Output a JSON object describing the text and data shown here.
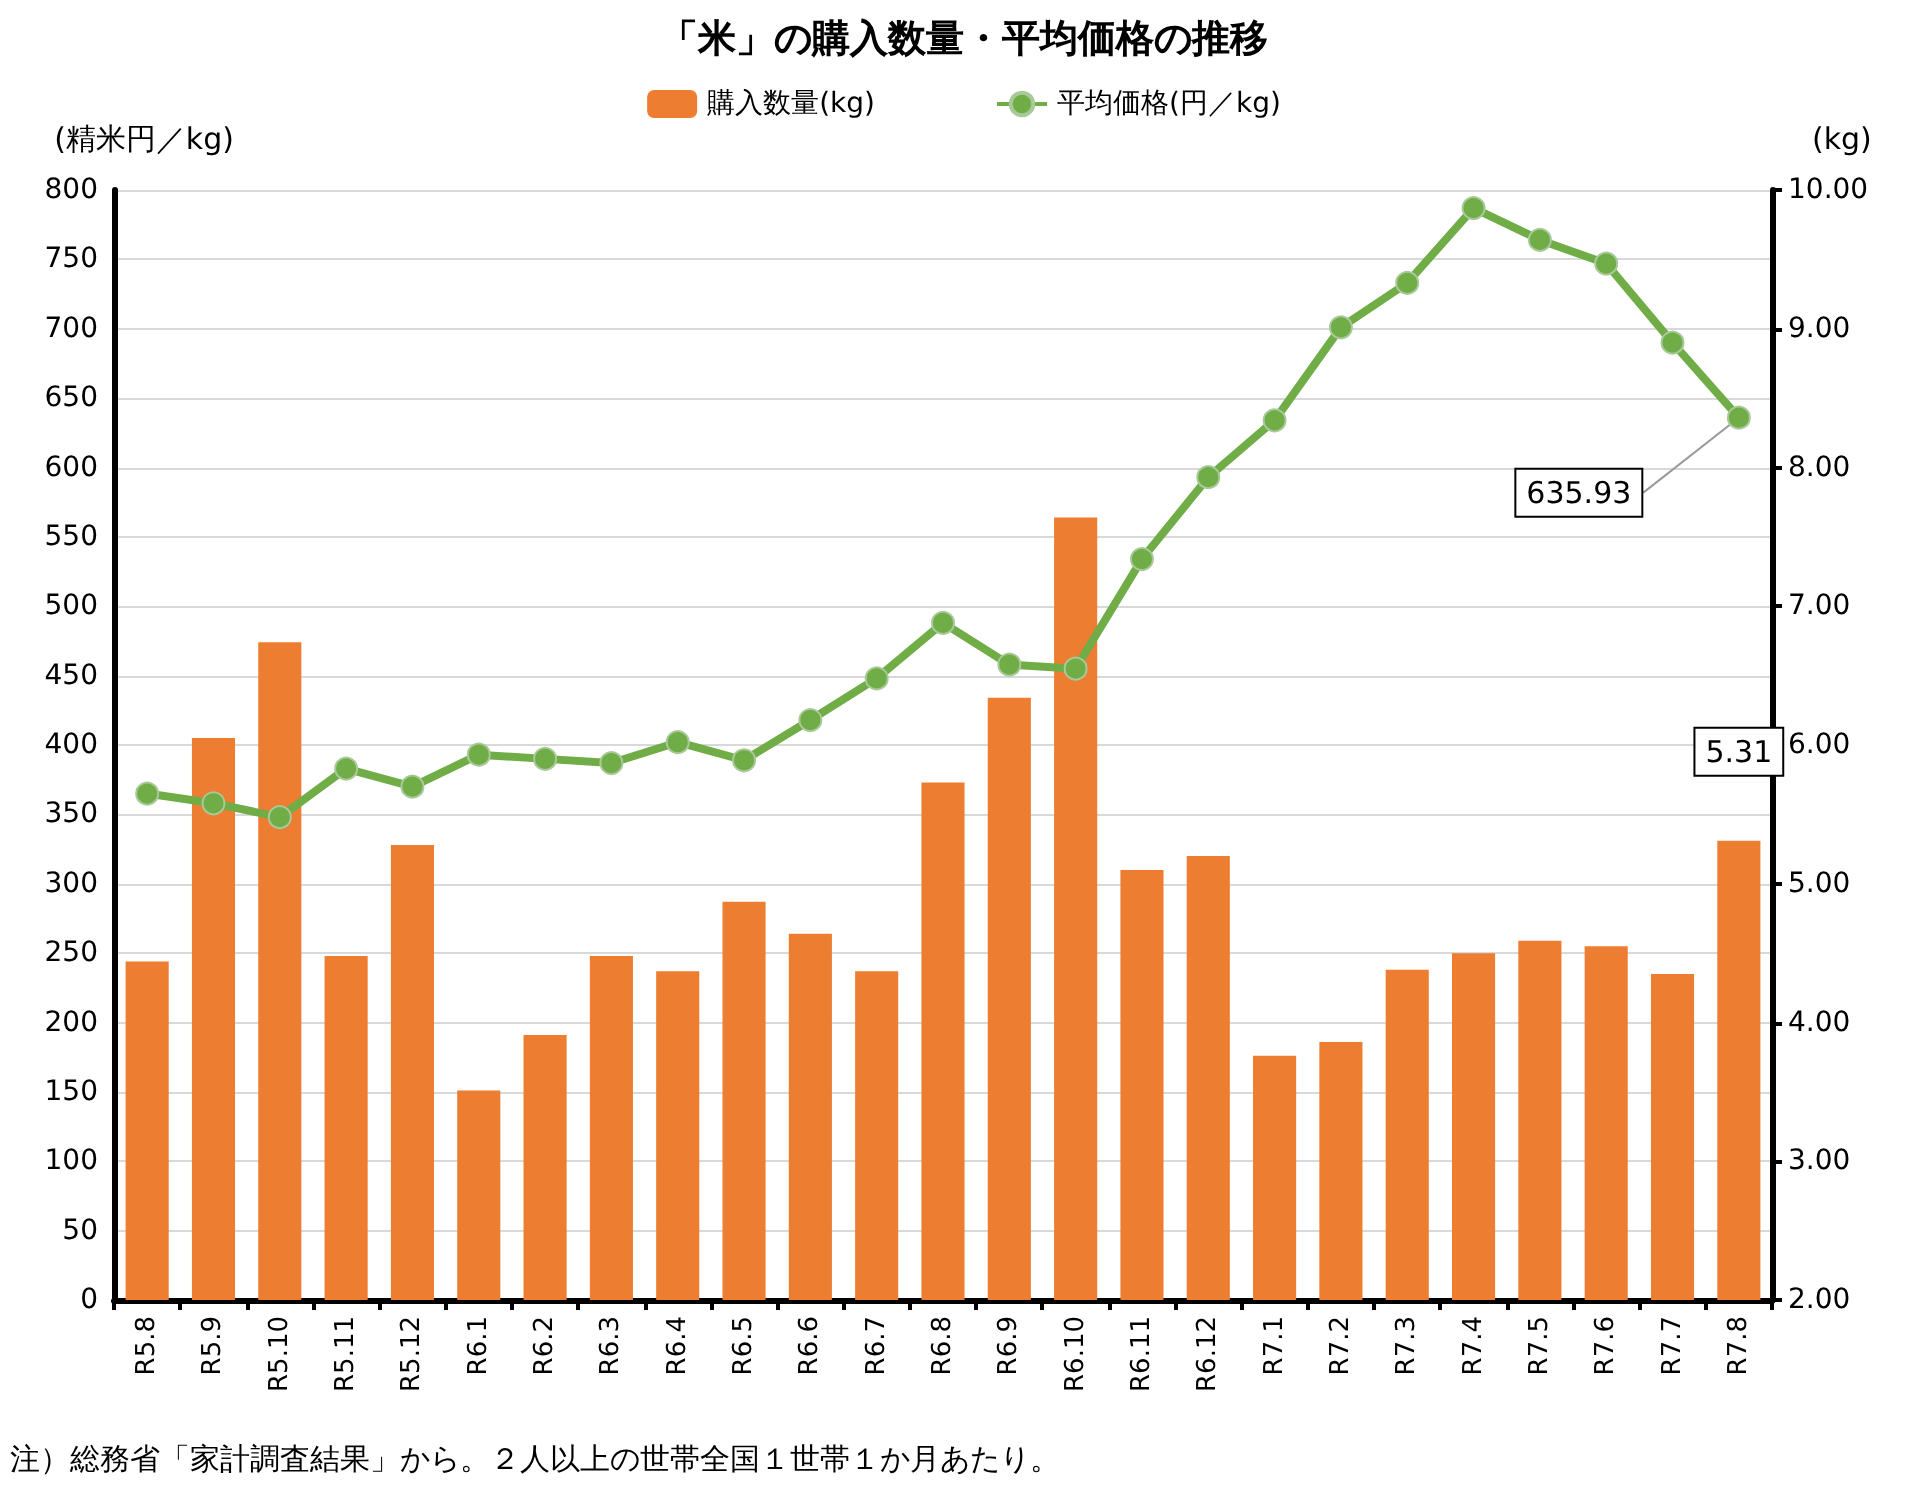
{
  "chart_data": {
    "type": "bar",
    "title": "「米」の購入数量・平均価格の推移",
    "ylabel": "(精米円／kg)",
    "y2label": "(kg)",
    "categories": [
      "R5.8",
      "R5.9",
      "R5.10",
      "R5.11",
      "R5.12",
      "R6.1",
      "R6.2",
      "R6.3",
      "R6.4",
      "R6.5",
      "R6.6",
      "R6.7",
      "R6.8",
      "R6.9",
      "R6.10",
      "R6.11",
      "R6.12",
      "R7.1",
      "R7.2",
      "R7.3",
      "R7.4",
      "R7.5",
      "R7.6",
      "R7.7",
      "R7.8"
    ],
    "series": [
      {
        "name": "購入数量(kg)",
        "axis": "y2",
        "color": "#ed7d31",
        "values": [
          4.44,
          6.05,
          6.74,
          4.48,
          5.28,
          3.51,
          3.91,
          4.48,
          4.37,
          4.87,
          4.64,
          4.37,
          5.73,
          6.34,
          7.64,
          5.1,
          5.2,
          3.76,
          3.86,
          4.38,
          4.5,
          4.59,
          4.55,
          4.35,
          5.31
        ],
        "value_labels": [
          null,
          null,
          null,
          null,
          null,
          null,
          null,
          null,
          null,
          null,
          null,
          null,
          null,
          null,
          null,
          null,
          null,
          null,
          null,
          null,
          null,
          null,
          null,
          null,
          "5.31"
        ]
      },
      {
        "name": "平均価格(円／kg)",
        "type": "line",
        "axis": "y",
        "color": "#70ad47",
        "values": [
          365,
          358,
          348,
          383,
          370,
          393,
          390,
          387,
          402,
          389,
          418,
          448,
          488,
          458,
          455,
          534,
          593,
          634,
          701,
          733,
          787,
          764,
          747,
          690,
          635.93
        ],
        "value_labels": [
          null,
          null,
          null,
          null,
          null,
          null,
          null,
          null,
          null,
          null,
          null,
          null,
          null,
          null,
          null,
          null,
          null,
          null,
          null,
          null,
          null,
          null,
          null,
          null,
          "635.93"
        ]
      }
    ],
    "ylim": [
      0,
      800
    ],
    "yticks": [
      0,
      50,
      100,
      150,
      200,
      250,
      300,
      350,
      400,
      450,
      500,
      550,
      600,
      650,
      700,
      750,
      800
    ],
    "y2lim": [
      2,
      10
    ],
    "y2ticks": [
      {
        "value": 2,
        "label": "2.00"
      },
      {
        "value": 3,
        "label": "3.00"
      },
      {
        "value": 4,
        "label": "4.00"
      },
      {
        "value": 5,
        "label": "5.00"
      },
      {
        "value": 6,
        "label": "6.00"
      },
      {
        "value": 7,
        "label": "7.00"
      },
      {
        "value": 8,
        "label": "8.00"
      },
      {
        "value": 9,
        "label": "9.00"
      },
      {
        "value": 10,
        "label": "10.00"
      }
    ],
    "grid": "y",
    "legend": "top",
    "marker": "circle",
    "annotations": [
      "注）総務省「家計調査結果」から。２人以上の世帯全国１世帯１か月あたり。"
    ]
  }
}
